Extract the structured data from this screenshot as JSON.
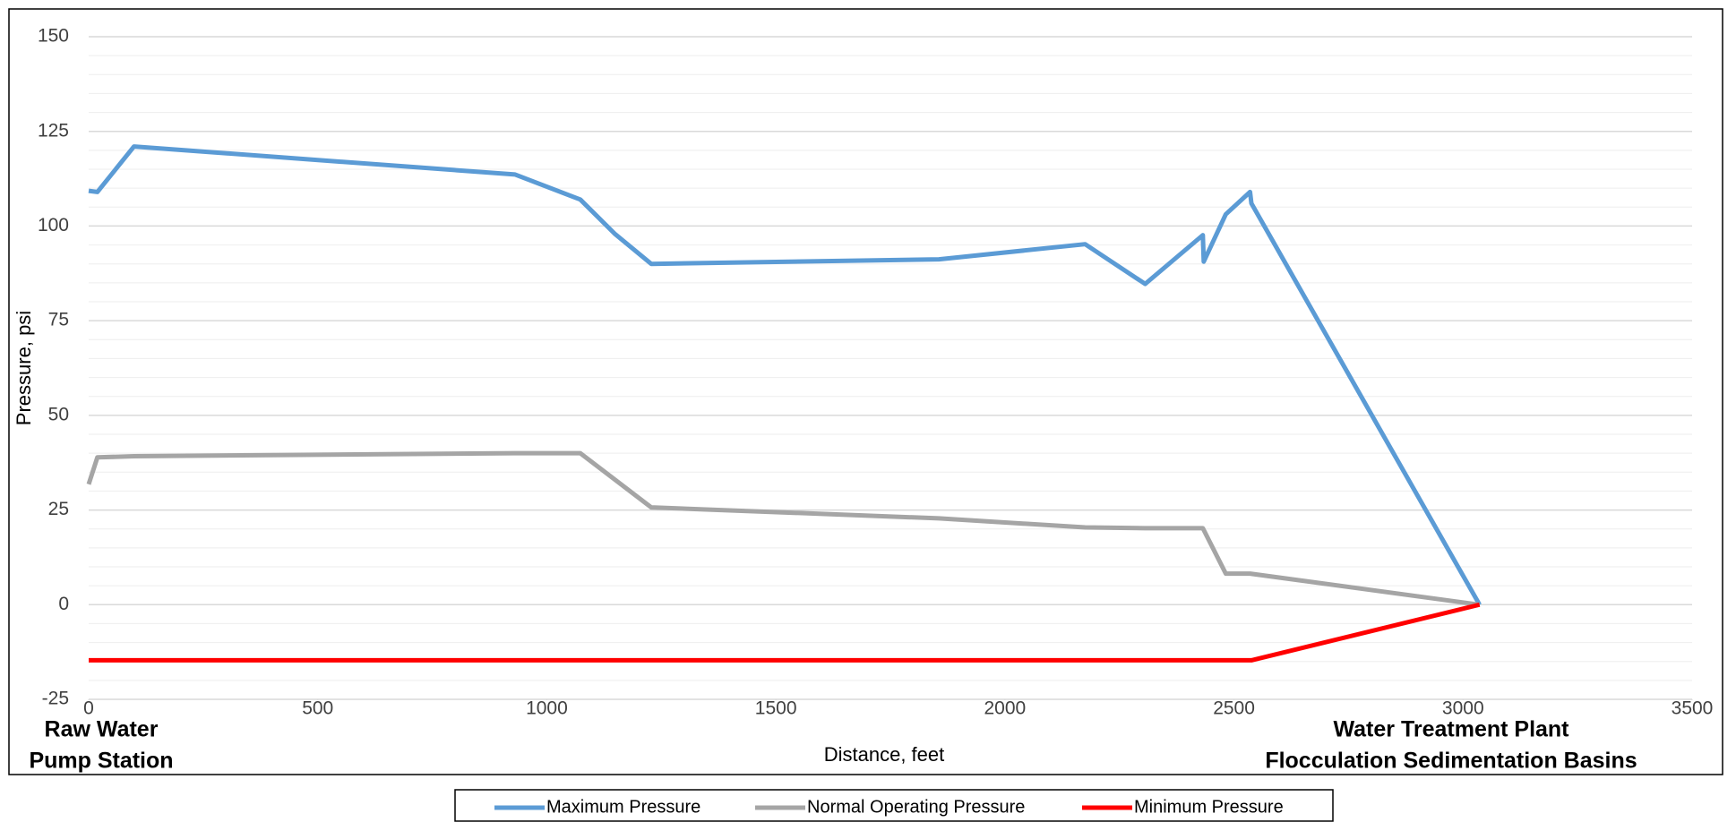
{
  "chart_data": {
    "type": "line",
    "xlabel": "Distance, feet",
    "ylabel": "Pressure, psi",
    "xlim": [
      0,
      3500
    ],
    "xticks": [
      0,
      500,
      1000,
      1500,
      2000,
      2500,
      3000,
      3500
    ],
    "ylim": [
      -25,
      150
    ],
    "yticks": [
      -25,
      0,
      25,
      50,
      75,
      100,
      125,
      150
    ],
    "grid": true,
    "minor_grid": true,
    "legend": "bottom",
    "annotations": [
      {
        "lines": [
          "Raw Water",
          "Pump Station"
        ],
        "at": "left"
      },
      {
        "lines": [
          "Water Treatment Plant",
          "Flocculation Sedimentation Basins"
        ],
        "at": "right"
      }
    ],
    "series": [
      {
        "name": "Maximum Pressure",
        "color": "#5b9bd5",
        "x": [
          0,
          19,
          99,
          931,
          1073,
          1148,
          1228,
          1856,
          2175,
          2306,
          2432,
          2434,
          2482,
          2535,
          2538,
          3036
        ],
        "values": [
          109.3,
          109,
          121,
          113.6,
          107,
          98,
          90,
          91.2,
          95.2,
          84.7,
          97.6,
          90.6,
          103.1,
          109,
          106,
          0
        ]
      },
      {
        "name": "Normal Operating Pressure",
        "color": "#a5a5a5",
        "x": [
          0,
          19,
          99,
          931,
          1073,
          1228,
          1856,
          2175,
          2306,
          2432,
          2482,
          2535,
          3036
        ],
        "values": [
          31.8,
          38.9,
          39.2,
          40,
          40,
          25.7,
          22.8,
          20.4,
          20.2,
          20.2,
          8.2,
          8.2,
          0
        ]
      },
      {
        "name": "Minimum Pressure",
        "color": "#ff0000",
        "x": [
          0,
          2538,
          3036
        ],
        "values": [
          -14.7,
          -14.7,
          0
        ]
      }
    ]
  }
}
